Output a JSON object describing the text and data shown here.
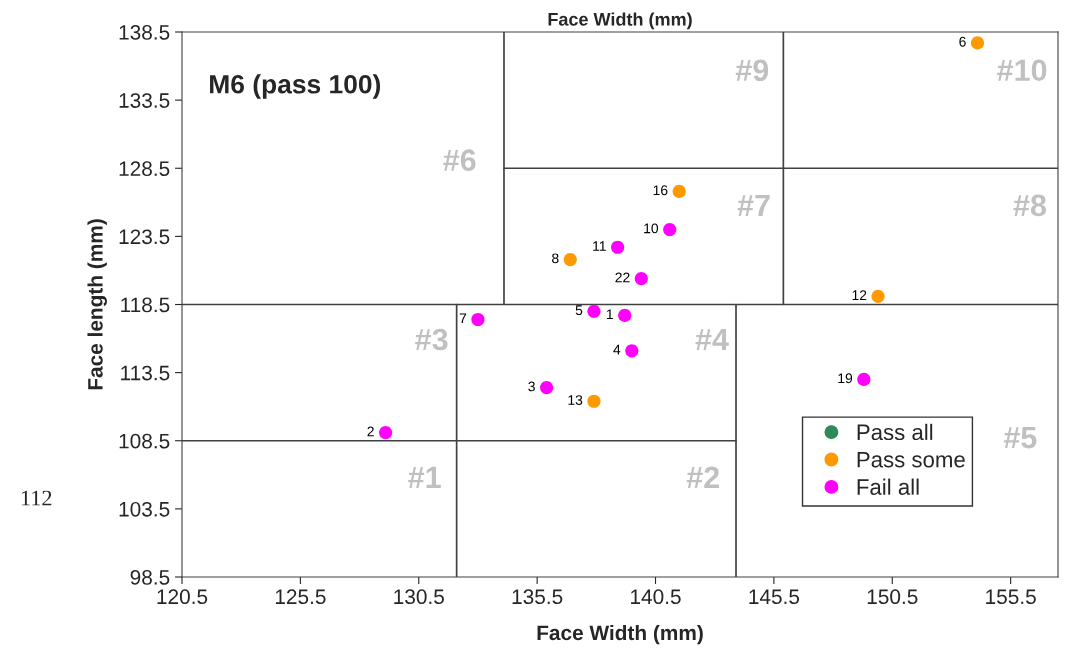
{
  "chart_data": {
    "type": "scatter",
    "title": "M6 (pass 100)",
    "xlabel": "Face Width (mm)",
    "x2label": "Face Width (mm)",
    "ylabel": "Face length (mm)",
    "xlim": [
      120.5,
      157.5
    ],
    "xticks": [
      120.5,
      125.5,
      130.5,
      135.5,
      140.5,
      145.5,
      150.5,
      155.5
    ],
    "ylim": [
      98.5,
      138.5
    ],
    "yticks": [
      98.5,
      103.5,
      108.5,
      113.5,
      118.5,
      123.5,
      128.5,
      133.5,
      138.5
    ],
    "grid": false,
    "legend": "bottom right",
    "series": [
      {
        "name": "Pass all",
        "color": "#2e8b57",
        "marker": "circle"
      },
      {
        "name": "Pass some",
        "color": "#ff9900",
        "marker": "circle",
        "x": [
          154.1,
          136.9,
          149.9,
          137.9,
          141.5
        ],
        "values": [
          137.7,
          121.8,
          119.1,
          111.4,
          126.8
        ]
      },
      {
        "name": "Fail all",
        "color": "#ff00ff",
        "marker": "circle",
        "x": [
          139.2,
          129.1,
          135.9,
          139.5,
          137.9,
          133.0,
          141.1,
          138.9,
          149.3,
          139.9
        ],
        "values": [
          117.7,
          109.1,
          112.4,
          115.1,
          118.0,
          117.4,
          124.0,
          122.7,
          113.0,
          120.4
        ]
      },
      {
        "type": "line",
        "color": "#404040",
        "x": [
          120.5,
          143.9
        ],
        "values": [
          108.5,
          108.5
        ]
      },
      {
        "type": "line",
        "color": "#404040",
        "x": [
          120.5,
          157.5
        ],
        "values": [
          118.5,
          118.5
        ]
      },
      {
        "type": "line",
        "color": "#404040",
        "x": [
          134.1,
          157.5
        ],
        "values": [
          128.5,
          128.5
        ]
      },
      {
        "type": "line",
        "color": "#404040",
        "x": [
          132.1,
          132.1
        ],
        "values": [
          98.5,
          118.5
        ]
      },
      {
        "type": "line",
        "color": "#404040",
        "x": [
          143.9,
          143.9
        ],
        "values": [
          98.5,
          118.5
        ]
      },
      {
        "type": "line",
        "color": "#404040",
        "x": [
          134.1,
          134.1
        ],
        "values": [
          118.5,
          138.5
        ]
      },
      {
        "type": "line",
        "color": "#404040",
        "x": [
          145.9,
          145.9
        ],
        "values": [
          118.5,
          138.5
        ]
      }
    ],
    "annotations": [
      "#1",
      "#2",
      "#3",
      "#4",
      "#5",
      "#6",
      "#7",
      "#8",
      "#9",
      "#10",
      "112",
      {
        "text": "6",
        "x": 154.1,
        "y": 137.7
      },
      {
        "text": "8",
        "x": 136.9,
        "y": 121.8
      },
      {
        "text": "12",
        "x": 149.9,
        "y": 119.1
      },
      {
        "text": "13",
        "x": 137.9,
        "y": 111.4
      },
      {
        "text": "16",
        "x": 141.5,
        "y": 126.8
      },
      {
        "text": "1",
        "x": 139.2,
        "y": 117.7
      },
      {
        "text": "2",
        "x": 129.1,
        "y": 109.1
      },
      {
        "text": "3",
        "x": 135.9,
        "y": 112.4
      },
      {
        "text": "4",
        "x": 139.5,
        "y": 115.1
      },
      {
        "text": "5",
        "x": 137.9,
        "y": 118.0
      },
      {
        "text": "7",
        "x": 133.0,
        "y": 117.4
      },
      {
        "text": "10",
        "x": 141.1,
        "y": 124.0
      },
      {
        "text": "11",
        "x": 138.9,
        "y": 122.7
      },
      {
        "text": "19",
        "x": 149.3,
        "y": 113.0
      },
      {
        "text": "22",
        "x": 139.9,
        "y": 120.4
      }
    ]
  }
}
